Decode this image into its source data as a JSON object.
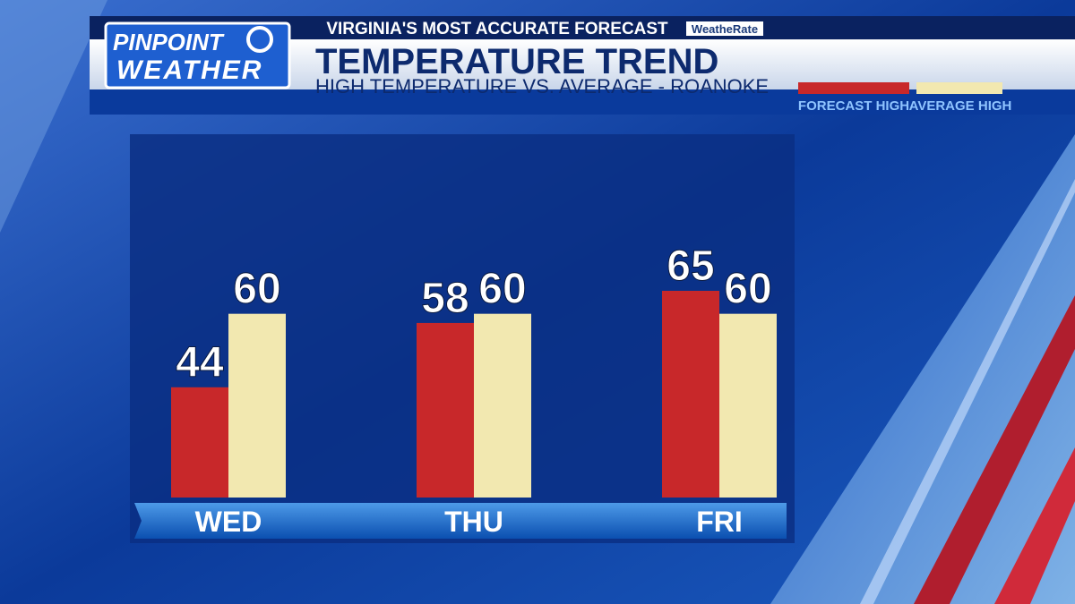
{
  "branding": {
    "logo_line1": "PINPOINT",
    "logo_line2": "WEATHER",
    "tagline": "VIRGINIA'S MOST ACCURATE FORECAST",
    "sponsor": "WeatheRate"
  },
  "chart_data": {
    "type": "bar",
    "title": "TEMPERATURE TREND",
    "subtitle": "HIGH TEMPERATURE VS. AVERAGE - ROANOKE",
    "categories": [
      "WED",
      "THU",
      "FRI"
    ],
    "series": [
      {
        "name": "FORECAST HIGH",
        "color": "#c8282a",
        "values": [
          44,
          58,
          65
        ]
      },
      {
        "name": "AVERAGE HIGH",
        "color": "#f2e8b0",
        "values": [
          60,
          60,
          60
        ]
      }
    ],
    "ylim": [
      20,
      80
    ],
    "legend": "top-right",
    "grid": false
  }
}
